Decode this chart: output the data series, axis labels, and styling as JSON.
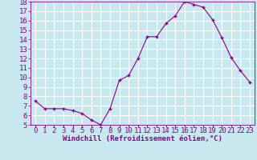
{
  "x": [
    0,
    1,
    2,
    3,
    4,
    5,
    6,
    7,
    8,
    9,
    10,
    11,
    12,
    13,
    14,
    15,
    16,
    17,
    18,
    19,
    20,
    21,
    22,
    23
  ],
  "y": [
    7.5,
    6.7,
    6.7,
    6.7,
    6.5,
    6.2,
    5.5,
    5.0,
    6.7,
    9.7,
    10.2,
    12.0,
    14.3,
    14.3,
    15.7,
    16.5,
    18.0,
    17.7,
    17.4,
    16.1,
    14.2,
    12.1,
    10.7,
    9.5
  ],
  "line_color": "#8B008B",
  "marker": "+",
  "bg_color": "#c8e8f0",
  "grid_color": "#ffffff",
  "xlabel": "Windchill (Refroidissement éolien,°C)",
  "xlabel_color": "#8B008B",
  "tick_color": "#8B008B",
  "ylim": [
    5,
    18
  ],
  "xlim": [
    -0.5,
    23.5
  ],
  "yticks": [
    5,
    6,
    7,
    8,
    9,
    10,
    11,
    12,
    13,
    14,
    15,
    16,
    17,
    18
  ],
  "xtick_labels": [
    "0",
    "1",
    "2",
    "3",
    "4",
    "5",
    "6",
    "7",
    "8",
    "9",
    "10",
    "11",
    "12",
    "13",
    "14",
    "15",
    "16",
    "17",
    "18",
    "19",
    "20",
    "21",
    "22",
    "23"
  ],
  "font_size": 6.5,
  "xlabel_fontsize": 6.5
}
